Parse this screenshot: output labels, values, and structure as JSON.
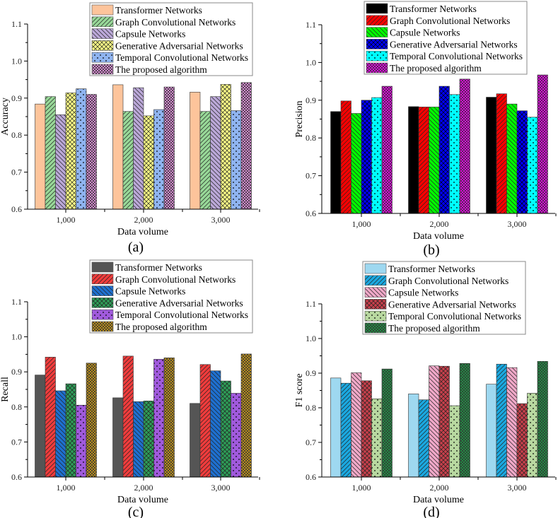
{
  "chart_data": [
    {
      "type": "bar",
      "panel_label": "(a)",
      "xlabel": "Data volume",
      "ylabel": "Accuracy",
      "ylim": [
        0.6,
        1.1
      ],
      "yticks": [
        "0.6",
        "0.7",
        "0.8",
        "0.9",
        "1.0",
        "1.1"
      ],
      "categories": [
        "1,000",
        "2,000",
        "3,000"
      ],
      "legend_position": "top-right",
      "series": [
        {
          "name": "Transformer Networks",
          "values": [
            0.884,
            0.936,
            0.916
          ],
          "color": "#FDC49B",
          "pattern": "solid"
        },
        {
          "name": "Graph Convolutional Networks",
          "values": [
            0.904,
            0.864,
            0.864
          ],
          "color": "#98D898",
          "pattern": "fwd"
        },
        {
          "name": "Capsule Networks",
          "values": [
            0.855,
            0.928,
            0.904
          ],
          "color": "#BBA8D8",
          "pattern": "back"
        },
        {
          "name": "Generative Adversarial Networks",
          "values": [
            0.914,
            0.852,
            0.937
          ],
          "color": "#FFFF88",
          "pattern": "cross"
        },
        {
          "name": "Temporal Convolutional Networks",
          "values": [
            0.925,
            0.869,
            0.866
          ],
          "color": "#8FB4F0",
          "pattern": "dots"
        },
        {
          "name": "The proposed algorithm",
          "values": [
            0.91,
            0.93,
            0.942
          ],
          "color": "#F59CF0",
          "pattern": "dense"
        }
      ]
    },
    {
      "type": "bar",
      "panel_label": "(b)",
      "xlabel": "Data volume",
      "ylabel": "Precision",
      "ylim": [
        0.6,
        1.1
      ],
      "yticks": [
        "0.6",
        "0.7",
        "0.8",
        "0.9",
        "1.0",
        "1.1"
      ],
      "categories": [
        "1,000",
        "2,000",
        "3,000"
      ],
      "legend_position": "top-right",
      "series": [
        {
          "name": "Transformer Networks",
          "values": [
            0.87,
            0.883,
            0.908
          ],
          "color": "#000000",
          "pattern": "solid"
        },
        {
          "name": "Graph Convolutional Networks",
          "values": [
            0.898,
            0.882,
            0.917
          ],
          "color": "#FF0000",
          "pattern": "fwd"
        },
        {
          "name": "Capsule Networks",
          "values": [
            0.865,
            0.882,
            0.89
          ],
          "color": "#00FF00",
          "pattern": "back"
        },
        {
          "name": "Generative Adversarial Networks",
          "values": [
            0.9,
            0.937,
            0.872
          ],
          "color": "#0000FF",
          "pattern": "cross"
        },
        {
          "name": "Temporal Convolutional Networks",
          "values": [
            0.907,
            0.915,
            0.855
          ],
          "color": "#00FFFF",
          "pattern": "dots"
        },
        {
          "name": "The proposed algorithm",
          "values": [
            0.937,
            0.956,
            0.967
          ],
          "color": "#FF00FF",
          "pattern": "dense"
        }
      ]
    },
    {
      "type": "bar",
      "panel_label": "(c)",
      "xlabel": "Data volume",
      "ylabel": "Recall",
      "ylim": [
        0.6,
        1.1
      ],
      "yticks": [
        "0.6",
        "0.7",
        "0.8",
        "0.9",
        "1.0",
        "1.1"
      ],
      "categories": [
        "1,000",
        "2,000",
        "3,000"
      ],
      "legend_position": "top-right",
      "series": [
        {
          "name": "Transformer Networks",
          "values": [
            0.891,
            0.826,
            0.81
          ],
          "color": "#555555",
          "pattern": "solid"
        },
        {
          "name": "Graph Convolutional Networks",
          "values": [
            0.942,
            0.945,
            0.921
          ],
          "color": "#F03C3C",
          "pattern": "fwd"
        },
        {
          "name": "Capsule Networks",
          "values": [
            0.846,
            0.815,
            0.903
          ],
          "color": "#1E70D0",
          "pattern": "back"
        },
        {
          "name": "Generative Adversarial Networks",
          "values": [
            0.866,
            0.817,
            0.874
          ],
          "color": "#2E9E58",
          "pattern": "cross"
        },
        {
          "name": "Temporal Convolutional Networks",
          "values": [
            0.805,
            0.936,
            0.839
          ],
          "color": "#A05ADC",
          "pattern": "dots"
        },
        {
          "name": "The proposed algorithm",
          "values": [
            0.925,
            0.94,
            0.951
          ],
          "color": "#D4A017",
          "pattern": "dense"
        }
      ]
    },
    {
      "type": "bar",
      "panel_label": "(d)",
      "xlabel": "Data volume",
      "ylabel": "F1 score",
      "ylim": [
        0.6,
        1.1
      ],
      "yticks": [
        "0.6",
        "0.7",
        "0.8",
        "0.9",
        "1.0",
        "1.1"
      ],
      "categories": [
        "1,000",
        "2,000",
        "3,000"
      ],
      "legend_position": "top-right",
      "series": [
        {
          "name": "Transformer Networks",
          "values": [
            0.886,
            0.84,
            0.868
          ],
          "color": "#9ED8F0",
          "pattern": "solid"
        },
        {
          "name": "Graph Convolutional Networks",
          "values": [
            0.871,
            0.823,
            0.926
          ],
          "color": "#1AA8E0",
          "pattern": "fwd"
        },
        {
          "name": "Capsule Networks",
          "values": [
            0.901,
            0.921,
            0.916
          ],
          "color": "#F0A8C8",
          "pattern": "back"
        },
        {
          "name": "Generative Adversarial Networks",
          "values": [
            0.878,
            0.92,
            0.812
          ],
          "color": "#C8404C",
          "pattern": "cross"
        },
        {
          "name": "Temporal Convolutional Networks",
          "values": [
            0.826,
            0.806,
            0.842
          ],
          "color": "#B8D8A0",
          "pattern": "dots"
        },
        {
          "name": "The proposed algorithm",
          "values": [
            0.912,
            0.928,
            0.934
          ],
          "color": "#1E9E48",
          "pattern": "dense"
        }
      ]
    }
  ]
}
